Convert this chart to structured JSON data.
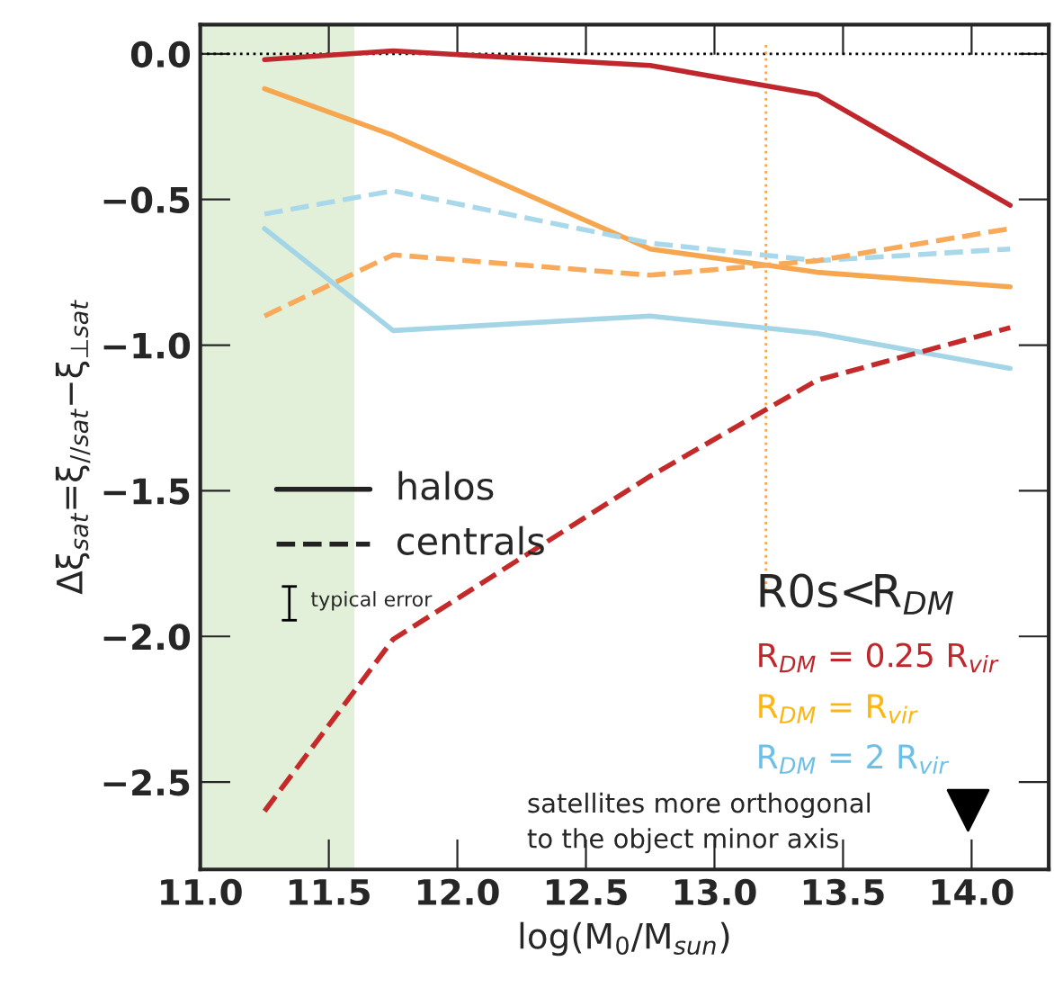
{
  "chart_data": {
    "type": "line",
    "xlabel": "log(M$_{0}$/M$_{sun}$)",
    "ylabel": "Δξ$_{sat}$=ξ$_{//sat}$−ξ$_{⊥sat}$",
    "x": [
      11.25,
      11.75,
      12.75,
      13.4,
      14.15
    ],
    "series": [
      {
        "color": "#c0272d",
        "line_style": "solid",
        "values": [
          -0.02,
          0.01,
          -0.04,
          -0.14,
          -0.52
        ]
      },
      {
        "color": "#f7a650",
        "line_style": "solid",
        "values": [
          -0.12,
          -0.28,
          -0.67,
          -0.75,
          -0.8
        ]
      },
      {
        "color": "#a3d5e6",
        "line_style": "solid",
        "values": [
          -0.6,
          -0.95,
          -0.9,
          -0.96,
          -1.08
        ]
      },
      {
        "color": "#a8d8ea",
        "line_style": "dashed",
        "values": [
          -0.55,
          -0.47,
          -0.65,
          -0.71,
          -0.67
        ]
      },
      {
        "color": "#f8a95a",
        "line_style": "dashed",
        "values": [
          -0.9,
          -0.69,
          -0.76,
          -0.71,
          -0.6
        ]
      },
      {
        "color": "#c52a2a",
        "line_style": "dashed",
        "values": [
          -2.6,
          -2.01,
          -1.45,
          -1.12,
          -0.94
        ]
      }
    ],
    "xlim": [
      11.0,
      14.3
    ],
    "ylim": [
      -2.8,
      0.1
    ],
    "xticks": [
      {
        "value": 11.0,
        "label": "11.0"
      },
      {
        "value": 11.5,
        "label": "11.5"
      },
      {
        "value": 12.0,
        "label": "12.0"
      },
      {
        "value": 12.5,
        "label": "12.5"
      },
      {
        "value": 13.0,
        "label": "13.0"
      },
      {
        "value": 13.5,
        "label": "13.5"
      },
      {
        "value": 14.0,
        "label": "14.0"
      }
    ],
    "yticks": [
      {
        "value": 0.0,
        "label": "0.0"
      },
      {
        "value": -0.5,
        "label": "−0.5"
      },
      {
        "value": -1.0,
        "label": "−1.0"
      },
      {
        "value": -1.5,
        "label": "−1.5"
      },
      {
        "value": -2.0,
        "label": "−2.0"
      },
      {
        "value": -2.5,
        "label": "−2.5"
      }
    ],
    "bands": [
      {
        "axis": "x",
        "from": 11.0,
        "to": 11.6,
        "color": "#e2f0d9"
      }
    ],
    "ref_lines": [
      {
        "axis": "y",
        "value": 0.0,
        "color": "#000000",
        "line_style": "dotted"
      },
      {
        "axis": "x",
        "value": 13.2,
        "color": "#f7a650",
        "line_style": "dotted"
      }
    ],
    "annotations": [
      "halos",
      "centrals",
      "typical error",
      "R0s<R$_{DM}$",
      "R$_{DM}$ = 0.25 R$_{vir}$",
      "R$_{DM}$ = R$_{vir}$",
      "R$_{DM}$ = 2 R$_{vir}$",
      "satellites more orthogonal\nto the object minor axis"
    ],
    "grid": false
  }
}
